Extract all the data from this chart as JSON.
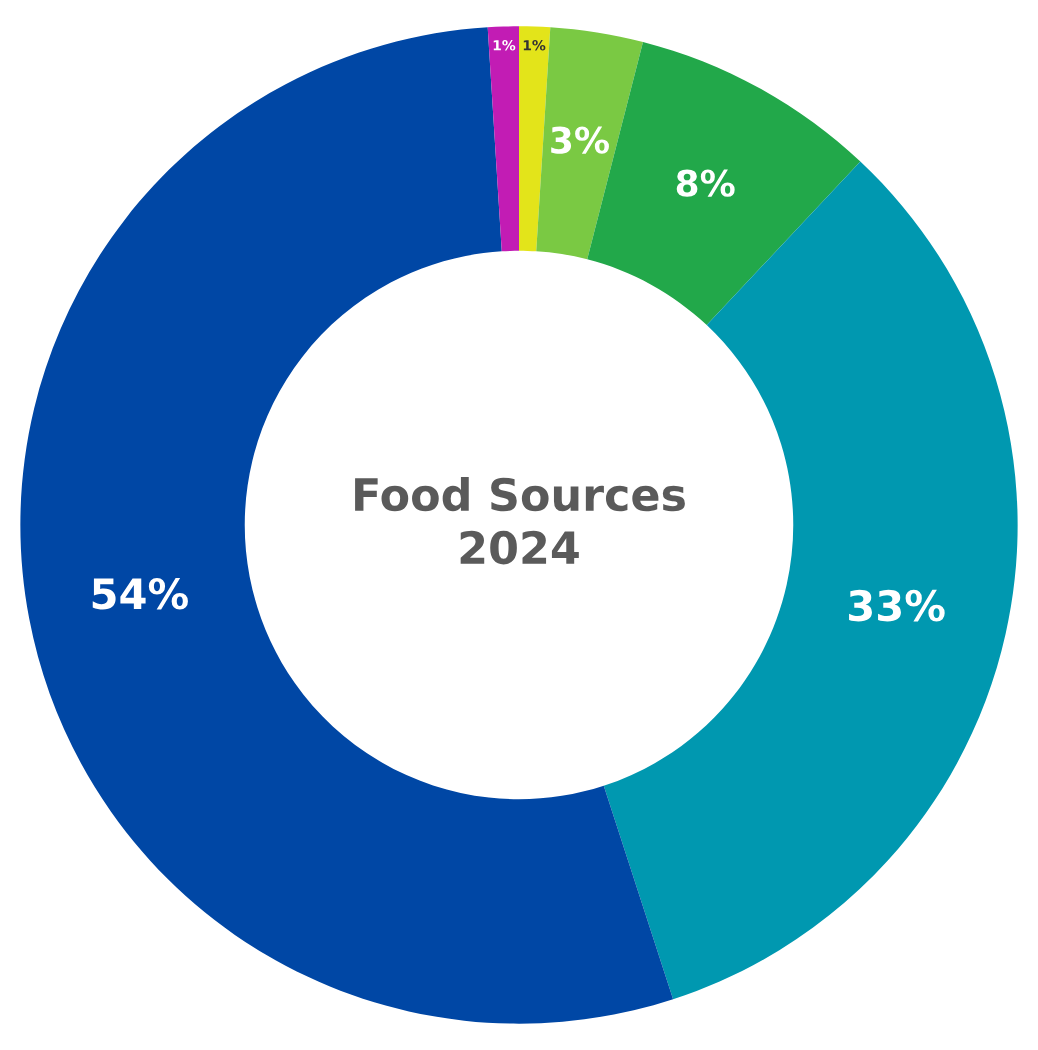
{
  "chart_data": {
    "type": "donut",
    "title": "Food Sources\n2024",
    "categories": [
      null,
      null,
      null,
      null,
      null,
      null
    ],
    "values": [
      1,
      3,
      8,
      33,
      54,
      1
    ],
    "colors": [
      "#e3e41a",
      "#7ac943",
      "#22a84a",
      "#0098b0",
      "#0047a5",
      "#c21cb4"
    ],
    "value_labels": [
      "1%",
      "3%",
      "8%",
      "33%",
      "54%",
      "1%"
    ],
    "legend": false
  }
}
